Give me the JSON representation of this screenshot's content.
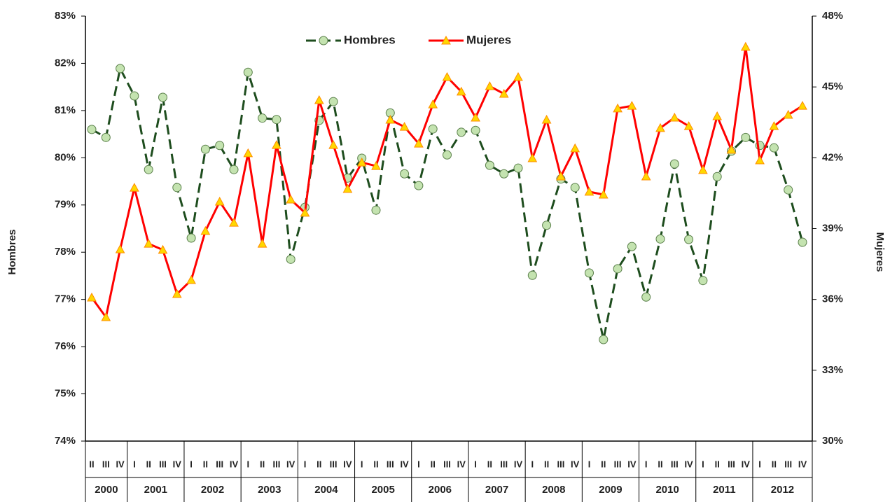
{
  "chart_data": {
    "type": "line",
    "categories": [
      "II",
      "III",
      "IV",
      "I",
      "II",
      "III",
      "IV",
      "I",
      "II",
      "III",
      "IV",
      "I",
      "II",
      "III",
      "IV",
      "I",
      "II",
      "III",
      "IV",
      "I",
      "II",
      "III",
      "IV",
      "I",
      "II",
      "III",
      "IV",
      "I",
      "II",
      "III",
      "IV",
      "I",
      "II",
      "III",
      "IV",
      "I",
      "II",
      "III",
      "IV",
      "I",
      "II",
      "III",
      "IV",
      "I",
      "II",
      "III",
      "IV",
      "I",
      "II",
      "III",
      "IV"
    ],
    "years": [
      "2000",
      "2001",
      "2002",
      "2003",
      "2004",
      "2005",
      "2006",
      "2007",
      "2008",
      "2009",
      "2010",
      "2011",
      "2012"
    ],
    "y_label": "Hombres",
    "y2_label": "Mujeres",
    "ylim": [
      74,
      83
    ],
    "yticks": [
      {
        "value": 74,
        "label": "74%"
      },
      {
        "value": 75,
        "label": "75%"
      },
      {
        "value": 76,
        "label": "76%"
      },
      {
        "value": 77,
        "label": "77%"
      },
      {
        "value": 78,
        "label": "78%"
      },
      {
        "value": 79,
        "label": "79%"
      },
      {
        "value": 80,
        "label": "80%"
      },
      {
        "value": 81,
        "label": "81%"
      },
      {
        "value": 82,
        "label": "82%"
      },
      {
        "value": 83,
        "label": "83%"
      }
    ],
    "y2lim": [
      30,
      48
    ],
    "y2ticks": [
      {
        "value": 30,
        "label": "30%"
      },
      {
        "value": 33,
        "label": "33%"
      },
      {
        "value": 36,
        "label": "36%"
      },
      {
        "value": 39,
        "label": "39%"
      },
      {
        "value": 42,
        "label": "42%"
      },
      {
        "value": 45,
        "label": "45%"
      },
      {
        "value": 48,
        "label": "48%"
      }
    ],
    "legend": "top",
    "series": [
      {
        "name": "Hombres",
        "color": "#1e4d1e",
        "marker": "circle",
        "marker_color": "#c4e3b0",
        "dashed": true,
        "values": [
          80.6,
          80.43,
          81.89,
          81.31,
          79.75,
          81.28,
          79.37,
          78.3,
          80.18,
          80.26,
          79.75,
          81.81,
          80.84,
          80.81,
          77.85,
          78.95,
          80.79,
          81.19,
          79.57,
          79.99,
          78.89,
          80.95,
          79.66,
          79.41,
          80.61,
          80.06,
          80.54,
          80.58,
          79.84,
          79.66,
          79.78,
          77.51,
          78.57,
          79.55,
          79.37,
          77.56,
          76.15,
          77.65,
          78.12,
          77.05,
          78.28,
          79.87,
          78.27,
          77.4,
          79.6,
          80.14,
          80.43,
          80.26,
          80.21,
          79.32,
          78.21
        ]
      },
      {
        "name": "Mujeres",
        "color": "#ff0000",
        "marker": "triangle",
        "marker_color": "#ffd700",
        "dashed": false,
        "axis": "y2",
        "values": [
          36.08,
          35.25,
          38.12,
          40.73,
          38.36,
          38.1,
          36.23,
          36.82,
          38.9,
          40.14,
          39.25,
          42.19,
          38.36,
          42.54,
          40.23,
          39.67,
          44.44,
          42.54,
          40.68,
          41.8,
          41.65,
          43.61,
          43.31,
          42.6,
          44.26,
          45.42,
          44.8,
          43.7,
          45.03,
          44.71,
          45.42,
          41.98,
          43.61,
          41.21,
          42.4,
          40.56,
          40.44,
          44.09,
          44.2,
          41.21,
          43.26,
          43.7,
          43.34,
          41.48,
          43.76,
          42.34,
          46.7,
          41.89,
          43.34,
          43.82,
          44.2
        ]
      }
    ]
  }
}
